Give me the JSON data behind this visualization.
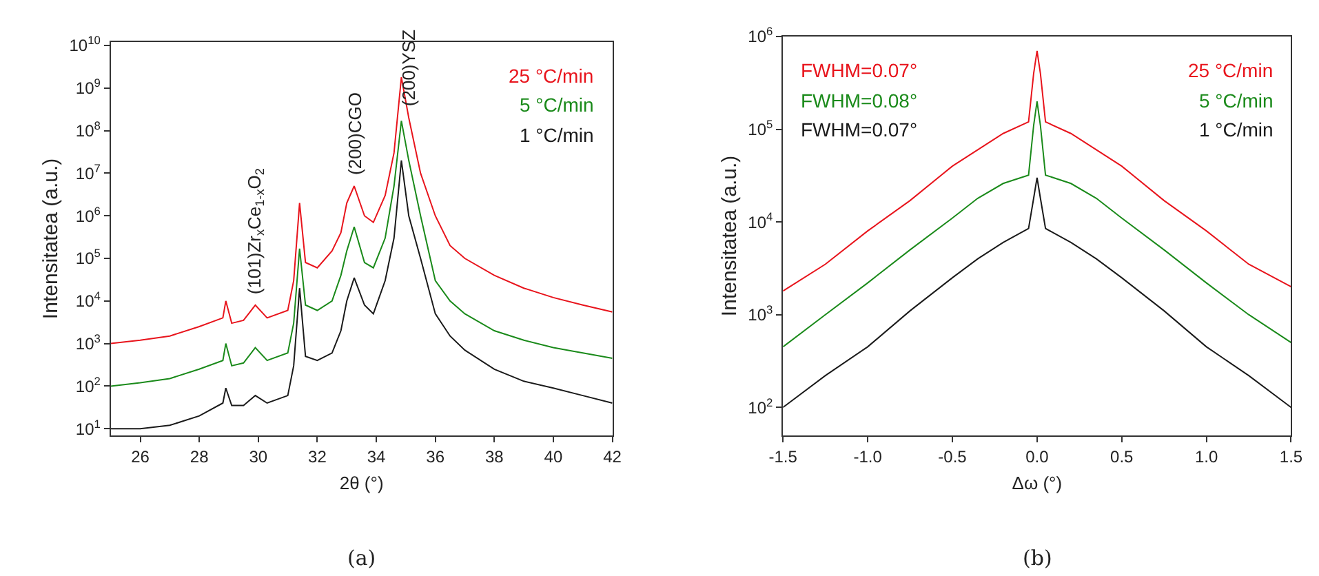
{
  "chart_data": [
    {
      "type": "line",
      "xlabel": "2θ (°)",
      "ylabel": "Intensitatea (a.u.)",
      "log": true,
      "xlim": [
        25,
        42
      ],
      "xticks": [
        26,
        28,
        30,
        32,
        34,
        36,
        38,
        40,
        42
      ],
      "ylim": [
        7,
        12000000000
      ],
      "yticks": [
        {
          "value": 10,
          "label": "10$^{1}$"
        },
        {
          "value": 100,
          "label": "10$^{2}$"
        },
        {
          "value": 1000,
          "label": "10$^{3}$"
        },
        {
          "value": 10000,
          "label": "10$^{4}$"
        },
        {
          "value": 100000,
          "label": "10$^{5}$"
        },
        {
          "value": 1000000,
          "label": "10$^{6}$"
        },
        {
          "value": 10000000,
          "label": "10$^{7}$"
        },
        {
          "value": 100000000,
          "label": "10$^{8}$"
        },
        {
          "value": 1000000000,
          "label": "10$^{9}$"
        },
        {
          "value": 10000000000,
          "label": "10$^{10}$"
        }
      ],
      "x": [
        25,
        26,
        27,
        28,
        28.8,
        28.9,
        29.1,
        29.5,
        29.9,
        30.3,
        31,
        31.2,
        31.4,
        31.6,
        32,
        32.5,
        32.8,
        33.0,
        33.25,
        33.6,
        33.9,
        34.3,
        34.6,
        34.85,
        35.1,
        35.5,
        36,
        36.5,
        37,
        38,
        39,
        40,
        41,
        42
      ],
      "series": [
        {
          "name": "25 °C/min",
          "color": "#e8141c",
          "values": [
            1000,
            1200,
            1500,
            2500,
            4000,
            10000,
            3000,
            3500,
            8000,
            4000,
            6000,
            30000,
            2000000,
            80000,
            60000,
            150000,
            400000,
            2000000,
            5000000,
            1000000,
            700000,
            3000000,
            30000000,
            1800000000,
            200000000,
            10000000,
            1000000,
            200000,
            100000,
            40000,
            20000,
            12000,
            8000,
            5500
          ]
        },
        {
          "name": "5 °C/min",
          "color": "#1a8a1a",
          "values": [
            100,
            120,
            150,
            250,
            400,
            1000,
            300,
            350,
            800,
            400,
            600,
            3000,
            170000,
            8000,
            6000,
            10000,
            40000,
            150000,
            550000,
            80000,
            60000,
            300000,
            5000000,
            170000000,
            20000000,
            1000000,
            30000,
            10000,
            5000,
            2000,
            1200,
            800,
            600,
            450
          ]
        },
        {
          "name": "1 °C/min",
          "color": "#1a1a1a",
          "values": [
            10,
            10,
            12,
            20,
            40,
            90,
            35,
            35,
            60,
            40,
            60,
            300,
            20000,
            500,
            400,
            600,
            2000,
            10000,
            35000,
            8000,
            5000,
            30000,
            300000,
            20000000,
            1000000,
            100000,
            5000,
            1500,
            700,
            250,
            130,
            90,
            60,
            40
          ]
        }
      ],
      "annotations": [
        {
          "text": "(101)Zr$_{x}$Ce$_{1-x}$O$_{2}$",
          "x": 29.9,
          "y": 8000
        },
        {
          "text": "(200)CGO",
          "x": 33.25,
          "y": 5000000
        },
        {
          "text": "(200)YSZ",
          "x": 35.1,
          "y": 200000000
        },
        "(a)"
      ]
    },
    {
      "type": "line",
      "xlabel": "Δω (°)",
      "ylabel": "Intensitatea (a.u.)",
      "log": true,
      "xlim": [
        -1.5,
        1.5
      ],
      "xticks": [
        -1.5,
        {
          "value": -1,
          "label": "-1.0"
        },
        -0.5,
        {
          "value": 0,
          "label": "0.0"
        },
        0.5,
        {
          "value": 1,
          "label": "1.0"
        },
        1.5
      ],
      "ylim": [
        50,
        1000000
      ],
      "yticks": [
        {
          "value": 100,
          "label": "10$^{2}$"
        },
        {
          "value": 1000,
          "label": "10$^{3}$"
        },
        {
          "value": 10000,
          "label": "10$^{4}$"
        },
        {
          "value": 100000,
          "label": "10$^{5}$"
        },
        {
          "value": 1000000,
          "label": "10$^{6}$"
        }
      ],
      "x": [
        -1.5,
        -1.25,
        -1.0,
        -0.75,
        -0.5,
        -0.35,
        -0.2,
        -0.05,
        -0.02,
        0,
        0.02,
        0.05,
        0.2,
        0.35,
        0.5,
        0.75,
        1.0,
        1.25,
        1.5
      ],
      "series": [
        {
          "name": "25 °C/min",
          "color": "#e8141c",
          "values": [
            1800,
            3500,
            8000,
            17000,
            40000,
            60000,
            90000,
            120000,
            400000,
            700000,
            400000,
            120000,
            90000,
            60000,
            40000,
            17000,
            8000,
            3500,
            2000
          ]
        },
        {
          "name": "5 °C/min",
          "color": "#1a8a1a",
          "values": [
            450,
            1000,
            2200,
            5000,
            11000,
            18000,
            26000,
            32000,
            110000,
            200000,
            110000,
            32000,
            26000,
            18000,
            11000,
            5000,
            2200,
            1000,
            500
          ]
        },
        {
          "name": "1 °C/min",
          "color": "#1a1a1a",
          "values": [
            100,
            220,
            450,
            1100,
            2500,
            4000,
            6000,
            8500,
            18000,
            30000,
            18000,
            8500,
            6000,
            4000,
            2500,
            1100,
            450,
            220,
            100
          ]
        }
      ],
      "annotations": [
        "FWHM=0.07°",
        "FWHM=0.08°",
        "FWHM=0.07°",
        "(b)"
      ]
    }
  ]
}
